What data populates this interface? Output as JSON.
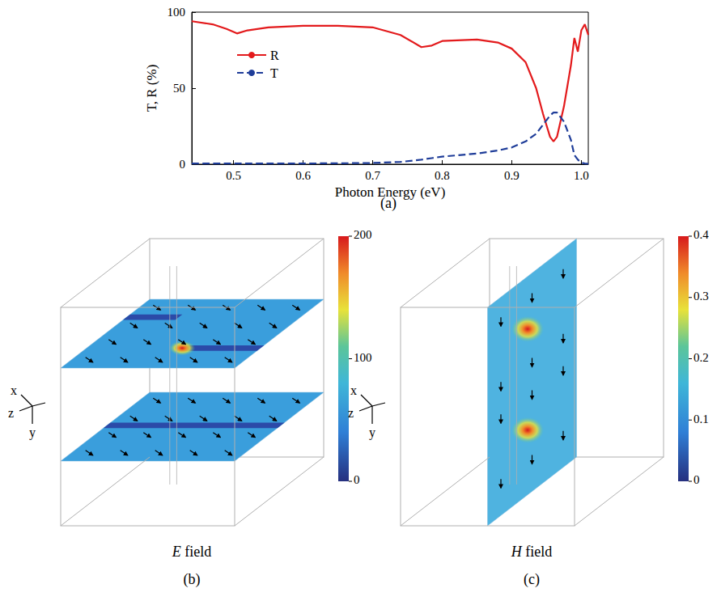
{
  "chart_data": {
    "type": "line",
    "label": "(a)",
    "x_label": "Photon Energy (eV)",
    "y_label": "T, R (%)",
    "x": [
      0.44,
      0.47,
      0.49,
      0.505,
      0.52,
      0.55,
      0.6,
      0.65,
      0.7,
      0.74,
      0.77,
      0.785,
      0.8,
      0.85,
      0.88,
      0.9,
      0.92,
      0.935,
      0.945,
      0.955,
      0.96,
      0.965,
      0.975,
      0.985,
      0.99,
      0.995,
      1.0,
      1.005,
      1.01
    ],
    "series": [
      {
        "name": "R",
        "color": "#e31a1c",
        "line_style": "solid",
        "values": [
          94,
          92,
          89,
          86,
          88,
          90,
          91,
          91,
          90,
          85,
          77,
          78,
          81,
          82,
          80,
          76,
          67,
          50,
          33,
          18,
          15,
          18,
          38,
          65,
          83,
          74,
          88,
          92,
          85
        ]
      },
      {
        "name": "T",
        "color": "#1f3d99",
        "line_style": "dashed",
        "values": [
          0.5,
          0.5,
          0.5,
          0.5,
          0.5,
          0.5,
          0.5,
          0.6,
          0.8,
          1.5,
          3,
          4,
          5,
          7,
          9,
          11,
          15,
          20,
          26,
          32,
          34,
          34,
          28,
          16,
          6,
          3,
          1,
          0.5,
          0.3
        ]
      }
    ],
    "xlim": [
      0.44,
      1.01
    ],
    "xticks": [
      0.5,
      0.6,
      0.7,
      0.8,
      0.9,
      {
        "value": 1,
        "label": "1.0"
      }
    ],
    "ylim": [
      0,
      100
    ],
    "yticks": [
      0,
      50,
      100
    ],
    "legend": "left",
    "grid": false
  },
  "field_maps": [
    {
      "label": "(b)",
      "title": "E field",
      "axes": [
        "x",
        "z",
        "y"
      ],
      "colorbar": {
        "range": [
          0,
          200
        ],
        "ticks": [
          0,
          100,
          200
        ]
      }
    },
    {
      "label": "(c)",
      "title": "H field",
      "axes": [
        "x",
        "z",
        "y"
      ],
      "colorbar": {
        "range": [
          0,
          0.4
        ],
        "ticks": [
          0,
          0.1,
          0.2,
          0.3,
          0.4
        ]
      }
    }
  ]
}
